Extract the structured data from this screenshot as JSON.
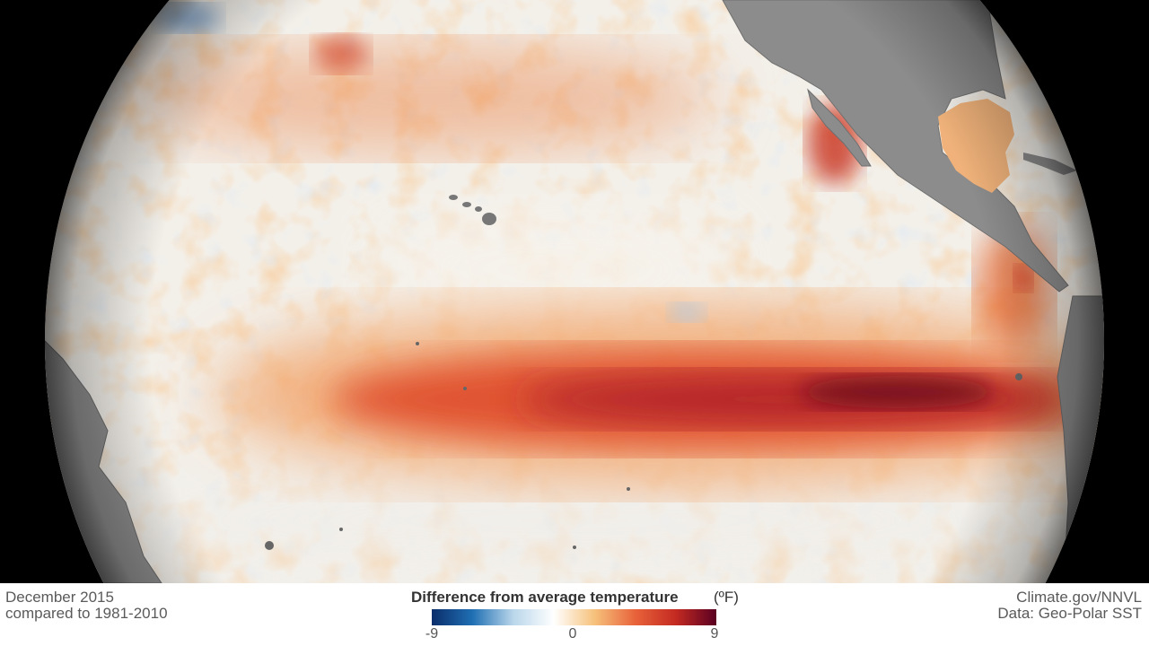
{
  "map": {
    "caption_left": {
      "line1": "December 2015",
      "line2": "compared to 1981-2010"
    },
    "caption_right": {
      "line1": "Climate.gov/NNVL",
      "line2": "Data: Geo-Polar SST"
    },
    "legend": {
      "title": "Difference from average temperature",
      "unit": "(ºF)",
      "ticks": [
        "-9",
        "0",
        "9"
      ],
      "colors": [
        "#0b2d6b",
        "#1f6fb3",
        "#b9d6ea",
        "#ffffff",
        "#f6c27c",
        "#e8633a",
        "#c42a22",
        "#5a0022"
      ]
    },
    "colors": {
      "land": "#8c8c8c",
      "background": "#000000",
      "ocean_neutral": "#f3f0ea",
      "anomaly_warm": "#d8351f",
      "anomaly_hot": "#6e0a1c"
    }
  }
}
